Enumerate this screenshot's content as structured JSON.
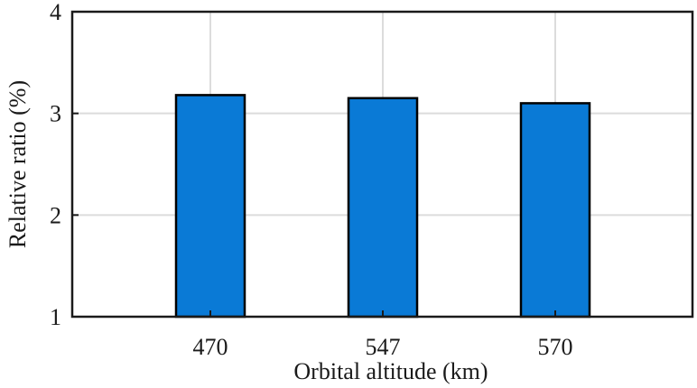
{
  "chart_data": {
    "type": "bar",
    "categories": [
      "470",
      "547",
      "570"
    ],
    "values": [
      3.18,
      3.15,
      3.1
    ],
    "title": "",
    "xlabel": "Orbital altitude (km)",
    "ylabel": "Relative ratio (%)",
    "ylim": [
      1,
      4
    ],
    "yticks": [
      "1",
      "2",
      "3",
      "4"
    ],
    "grid": true,
    "bar_color": "#0a7ad6",
    "bar_edge_color": "#000000",
    "grid_color": "#dcdcdc"
  }
}
